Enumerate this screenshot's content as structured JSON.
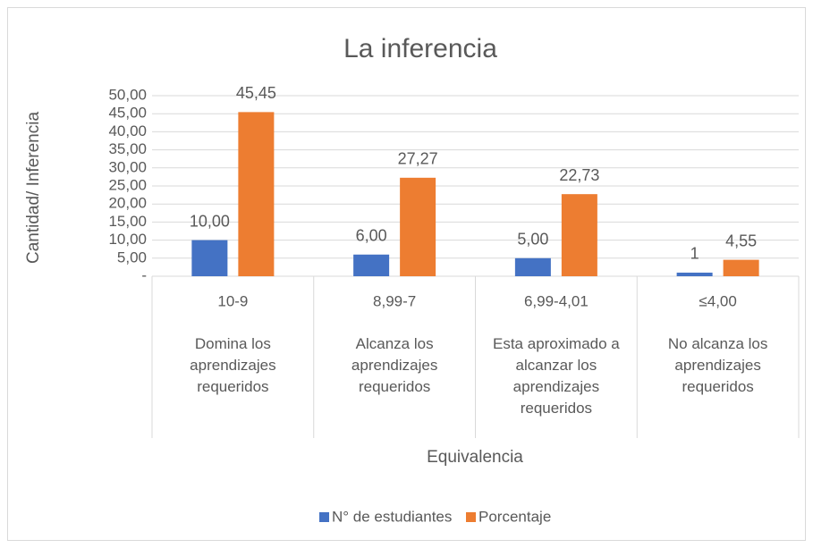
{
  "chart_data": {
    "type": "bar",
    "title": "La inferencia",
    "y_axis_label": "Cantidad/ Inferencia",
    "x_axis_label": "Equivalencia",
    "categories": [
      "10-9",
      "8,99-7",
      "6,99-4,01",
      "≤4,00"
    ],
    "category_descriptions": [
      "Domina los aprendizajes requeridos",
      "Alcanza los aprendizajes requeridos",
      "Esta aproximado a alcanzar los aprendizajes requeridos",
      "No alcanza los aprendizajes requeridos"
    ],
    "series": [
      {
        "name": "N° de estudiantes",
        "color": "#4472c4",
        "values": [
          10,
          6,
          5,
          1
        ],
        "value_labels": [
          "10,00",
          "6,00",
          "5,00",
          "1"
        ]
      },
      {
        "name": "Porcentaje",
        "color": "#ed7d31",
        "values": [
          45.45,
          27.27,
          22.73,
          4.55
        ],
        "value_labels": [
          "45,45",
          "27,27",
          "22,73",
          "4,55"
        ]
      }
    ],
    "ylim": [
      0,
      50
    ],
    "yticks": [
      {
        "value": 0,
        "label": "-"
      },
      {
        "value": 5,
        "label": "5,00"
      },
      {
        "value": 10,
        "label": "10,00"
      },
      {
        "value": 15,
        "label": "15,00"
      },
      {
        "value": 20,
        "label": "20,00"
      },
      {
        "value": 25,
        "label": "25,00"
      },
      {
        "value": 30,
        "label": "30,00"
      },
      {
        "value": 35,
        "label": "35,00"
      },
      {
        "value": 40,
        "label": "40,00"
      },
      {
        "value": 45,
        "label": "45,00"
      },
      {
        "value": 50,
        "label": "50,00"
      }
    ],
    "grid": true,
    "legend": "bottom"
  }
}
